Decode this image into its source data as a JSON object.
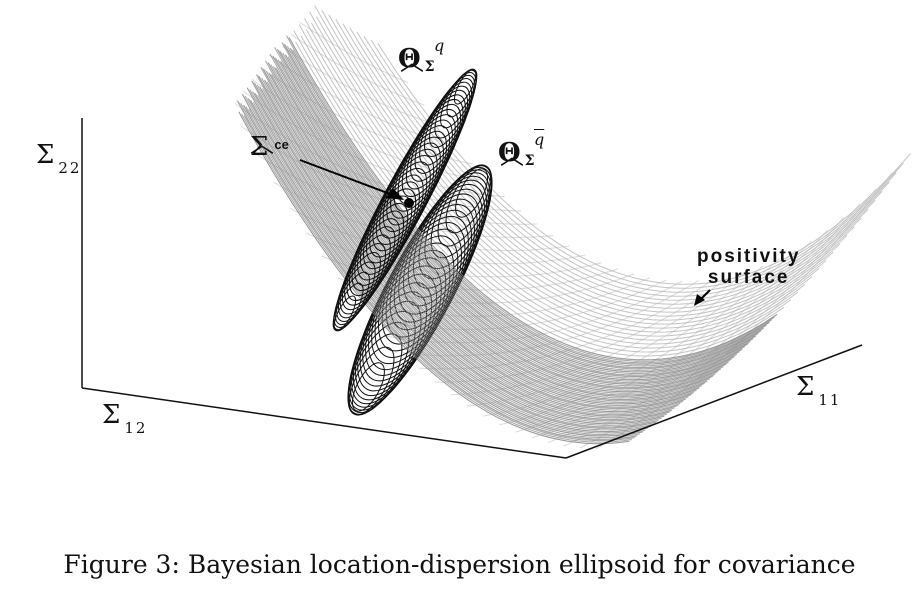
{
  "figure": {
    "axes": {
      "z_label": "Σ",
      "z_sub": "22",
      "x_label": "Σ",
      "x_sub": "12",
      "y_label": "Σ",
      "y_sub": "11"
    },
    "labels": {
      "theta_q_symbol": "Θ",
      "theta_q_sub": "Σ",
      "theta_q_sup": "q",
      "theta_qbar_symbol": "Θ",
      "theta_qbar_sub": "Σ",
      "theta_qbar_sup": "q",
      "sigma_ce_symbol": "Σ",
      "sigma_ce_sub": "ce",
      "positivity_line1": "positivity",
      "positivity_line2": "surface"
    },
    "colors": {
      "surface": "#8a8a8a",
      "surface_light": "#b5b5b5",
      "ellipsoid": "#111111",
      "axes": "#111111"
    }
  },
  "caption": "Figure 3: Bayesian location-dispersion ellipsoid for covariance"
}
